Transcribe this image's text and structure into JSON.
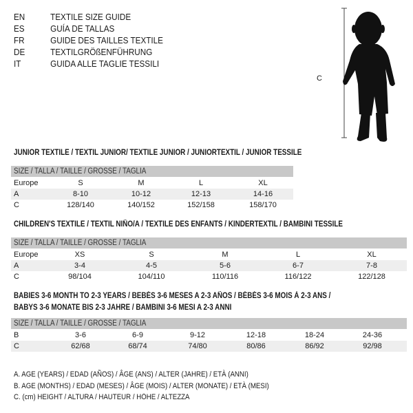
{
  "header": {
    "languages": [
      {
        "code": "EN",
        "text": "TEXTILE SIZE GUIDE"
      },
      {
        "code": "ES",
        "text": "GUÍA DE TALLAS"
      },
      {
        "code": "FR",
        "text": "GUIDE DES TAILLES TEXTILE"
      },
      {
        "code": "DE",
        "text": "TEXTILGRÖßENFÜHRUNG"
      },
      {
        "code": "IT",
        "text": "GUIDA ALLE TAGLIE TESSILI"
      }
    ]
  },
  "figure": {
    "measure_label": "C",
    "icon": "child-silhouette-icon"
  },
  "size_header": "SIZE / TALLA / TAILLE / GRÖSSE / TAGLIA",
  "junior": {
    "title": "JUNIOR TEXTILE / TEXTIL JUNIOR/ TEXTILE JUNIOR / JUNIORTEXTIL / JUNIOR TESSILE",
    "rows": [
      {
        "label": "Europe",
        "values": [
          "S",
          "M",
          "L",
          "XL"
        ]
      },
      {
        "label": "A",
        "values": [
          "8-10",
          "10-12",
          "12-13",
          "14-16"
        ]
      },
      {
        "label": "C",
        "values": [
          "128/140",
          "140/152",
          "152/158",
          "158/170"
        ]
      }
    ]
  },
  "children": {
    "title": "CHILDREN'S TEXTILE / TEXTIL NIÑO/A / TEXTILE DES ENFANTS / KINDERTEXTIL / BAMBINI TESSILE",
    "rows": [
      {
        "label": "Europe",
        "values": [
          "XS",
          "S",
          "M",
          "L",
          "XL"
        ]
      },
      {
        "label": "A",
        "values": [
          "3-4",
          "4-5",
          "5-6",
          "6-7",
          "7-8"
        ]
      },
      {
        "label": "C",
        "values": [
          "98/104",
          "104/110",
          "110/116",
          "116/122",
          "122/128"
        ]
      }
    ]
  },
  "babies": {
    "title_line1": "BABIES 3-6 MONTH TO 2-3 YEARS / BEBÉS 3-6 MESES A 2-3 AÑOS / BÉBÉS 3-6 MOIS À 2-3 ANS /",
    "title_line2": "BABYS 3-6 MONATE BIS 2-3 JAHRE / BAMBINI 3-6 MESI A 2-3 ANNI",
    "rows": [
      {
        "label": "B",
        "values": [
          "3-6",
          "6-9",
          "9-12",
          "12-18",
          "18-24",
          "24-36"
        ]
      },
      {
        "label": "C",
        "values": [
          "62/68",
          "68/74",
          "74/80",
          "80/86",
          "86/92",
          "92/98"
        ]
      }
    ]
  },
  "legend": [
    "A. AGE (YEARS) / EDAD (AÑOS) / ÂGE (ANS) / ALTER (JAHRE) / ETÀ (ANNI)",
    "B. AGE (MONTHS) / EDAD (MESES) / ÂGE (MOIS) / ALTER (MONATE) / ETÀ (MESI)",
    "C. (cm) HEIGHT / ALTURA / HAUTEUR / HÖHE / ALTEZZA"
  ]
}
